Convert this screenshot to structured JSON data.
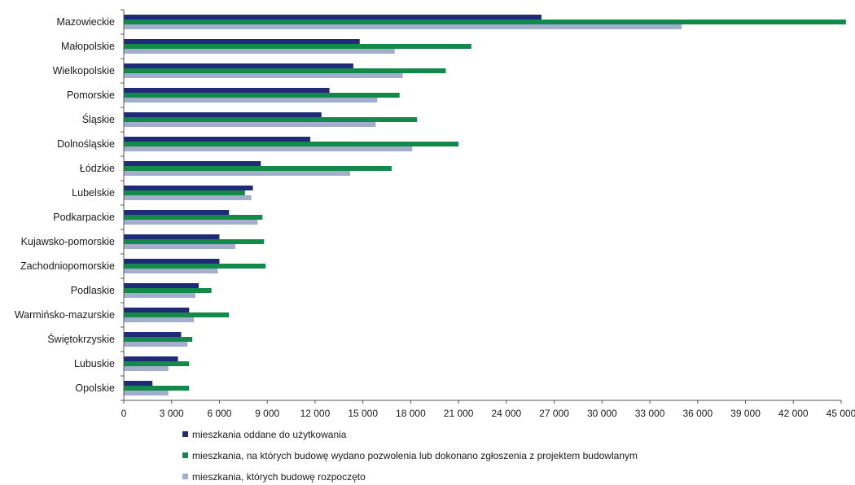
{
  "chart_data": {
    "type": "bar",
    "orientation": "horizontal",
    "categories": [
      "Mazowieckie",
      "Małopolskie",
      "Wielkopolskie",
      "Pomorskie",
      "Śląskie",
      "Dolnośląskie",
      "Łódzkie",
      "Lubelskie",
      "Podkarpackie",
      "Kujawsko-pomorskie",
      "Zachodniopomorskie",
      "Podlaskie",
      "Warmińsko-mazurskie",
      "Świętokrzyskie",
      "Lubuskie",
      "Opolskie"
    ],
    "series": [
      {
        "name": "mieszkania oddane do użytkowania",
        "color": "#1f2a78",
        "values": [
          26200,
          14800,
          14400,
          12900,
          12400,
          11700,
          8600,
          8100,
          6600,
          6000,
          6000,
          4700,
          4100,
          3600,
          3400,
          1800
        ]
      },
      {
        "name": "mieszkania, na których budowę wydano pozwolenia lub dokonano zgłoszenia z projektem budowlanym",
        "color": "#138a4a",
        "values": [
          45300,
          21800,
          20200,
          17300,
          18400,
          21000,
          16800,
          7600,
          8700,
          8800,
          8900,
          5500,
          6600,
          4300,
          4100,
          4100
        ]
      },
      {
        "name": "mieszkania, których budowę rozpoczęto",
        "color": "#a3aecf",
        "values": [
          35000,
          17000,
          17500,
          15900,
          15800,
          18100,
          14200,
          8000,
          8400,
          7000,
          5900,
          4500,
          4400,
          4000,
          2800,
          2800
        ]
      }
    ],
    "xlim": [
      0,
      45000
    ],
    "xticks": [
      0,
      3000,
      6000,
      9000,
      12000,
      15000,
      18000,
      21000,
      24000,
      27000,
      30000,
      33000,
      36000,
      39000,
      42000,
      45000
    ],
    "xtick_labels": [
      "0",
      "3 000",
      "6 000",
      "9 000",
      "12 000",
      "15 000",
      "18 000",
      "21 000",
      "24 000",
      "27 000",
      "30 000",
      "33 000",
      "36 000",
      "39 000",
      "42 000",
      "45 000"
    ],
    "title": "",
    "xlabel": "",
    "ylabel": "",
    "grid": false,
    "legend_position": "bottom"
  }
}
